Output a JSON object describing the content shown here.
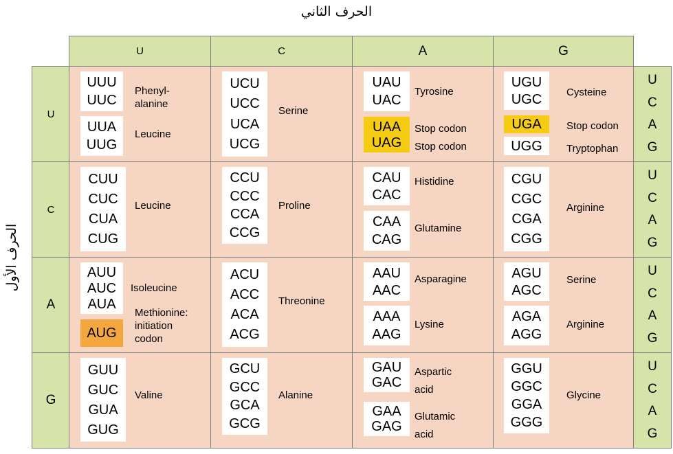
{
  "titles": {
    "top": "الحرف الثاني",
    "left": "الحرف الأول"
  },
  "columns": [
    "U",
    "C",
    "A",
    "G"
  ],
  "rows": [
    "U",
    "C",
    "A",
    "G"
  ],
  "third_letters": [
    "U",
    "C",
    "A",
    "G"
  ],
  "cells": {
    "UU": {
      "box1": [
        "UUU",
        "UUC"
      ],
      "aa1a": "Phenyl-",
      "aa1b": "alanine",
      "box2": [
        "UUA",
        "UUG"
      ],
      "aa2": "Leucine"
    },
    "UC": {
      "box": [
        "UCU",
        "UCC",
        "UCA",
        "UCG"
      ],
      "aa": "Serine"
    },
    "UA": {
      "box1": [
        "UAU",
        "UAC"
      ],
      "aa1": "Tyrosine",
      "box2": [
        "UAA",
        "UAG"
      ],
      "aa2a": "Stop codon",
      "aa2b": "Stop codon"
    },
    "UG": {
      "box1": [
        "UGU",
        "UGC"
      ],
      "aa1": "Cysteine",
      "box2": [
        "UGA"
      ],
      "aa2": "Stop codon",
      "box3": [
        "UGG"
      ],
      "aa3": "Tryptophan"
    },
    "CU": {
      "box": [
        "CUU",
        "CUC",
        "CUA",
        "CUG"
      ],
      "aa": "Leucine"
    },
    "CC": {
      "box": [
        "CCU",
        "CCC",
        "CCA",
        "CCG"
      ],
      "aa": "Proline"
    },
    "CA": {
      "box1": [
        "CAU",
        "CAC"
      ],
      "aa1": "Histidine",
      "box2": [
        "CAA",
        "CAG"
      ],
      "aa2": "Glutamine"
    },
    "CG": {
      "box": [
        "CGU",
        "CGC",
        "CGA",
        "CGG"
      ],
      "aa": "Arginine"
    },
    "AU": {
      "box1": [
        "AUU",
        "AUC",
        "AUA"
      ],
      "aa1": "Isoleucine",
      "box2": [
        "AUG"
      ],
      "aa2a": "Methionine:",
      "aa2b": "initiation",
      "aa2c": "codon"
    },
    "AC": {
      "box": [
        "ACU",
        "ACC",
        "ACA",
        "ACG"
      ],
      "aa": "Threonine"
    },
    "AA": {
      "box1": [
        "AAU",
        "AAC"
      ],
      "aa1": "Asparagine",
      "box2": [
        "AAA",
        "AAG"
      ],
      "aa2": "Lysine"
    },
    "AG": {
      "box1": [
        "AGU",
        "AGC"
      ],
      "aa1": "Serine",
      "box2": [
        "AGA",
        "AGG"
      ],
      "aa2": "Arginine"
    },
    "GU": {
      "box": [
        "GUU",
        "GUC",
        "GUA",
        "GUG"
      ],
      "aa": "Valine"
    },
    "GC": {
      "box": [
        "GCU",
        "GCC",
        "GCA",
        "GCG"
      ],
      "aa": "Alanine"
    },
    "GA": {
      "box1": [
        "GAU",
        "GAC"
      ],
      "aa1a": "Aspartic",
      "aa1b": "acid",
      "box2": [
        "GAA",
        "GAG"
      ],
      "aa2a": "Glutamic",
      "aa2b": "acid"
    },
    "GG": {
      "box": [
        "GGU",
        "GGC",
        "GGA",
        "GGG"
      ],
      "aa": "Glycine"
    }
  },
  "colors": {
    "header_green": "#d7e4a9",
    "cell_pink": "#f7d5c3",
    "stop_yellow": "#f5cb13",
    "start_orange": "#f5a73f"
  }
}
